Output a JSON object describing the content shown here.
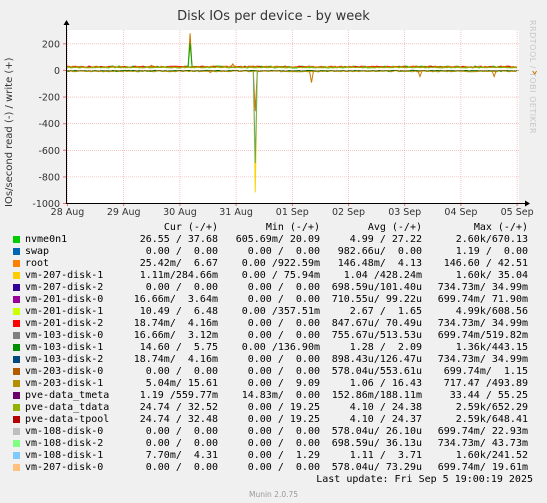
{
  "chart_data": {
    "type": "line",
    "title": "Disk IOs per device - by week",
    "ylabel": "IOs/second read (-) / write (+)",
    "ylim": [
      -1000,
      300
    ],
    "yticks": [
      -1000,
      -800,
      -600,
      -400,
      -200,
      0,
      200
    ],
    "xticks": [
      "28 Aug",
      "29 Aug",
      "30 Aug",
      "31 Aug",
      "01 Sep",
      "02 Sep",
      "03 Sep",
      "04 Sep",
      "05 Sep"
    ],
    "grid": true,
    "legend_placement": "bottom",
    "spikes": [
      {
        "day": 2.19,
        "value": 275,
        "color": "#cc7700"
      },
      {
        "day": 2.19,
        "value": 200,
        "color": "#00aa00"
      },
      {
        "day": 3.35,
        "value": -310,
        "color": "#cc7700"
      },
      {
        "day": 3.35,
        "value": -920,
        "color": "#ffd400"
      },
      {
        "day": 3.35,
        "value": -700,
        "color": "#66aa66"
      },
      {
        "day": 4.35,
        "value": -95,
        "color": "#cc7700"
      },
      {
        "day": 1.5,
        "value": 35,
        "color": "#cc7700"
      },
      {
        "day": 2.55,
        "value": -20,
        "color": "#cc7700"
      },
      {
        "day": 2.95,
        "value": 45,
        "color": "#cc7700"
      },
      {
        "day": 6.28,
        "value": -50,
        "color": "#cc7700"
      },
      {
        "day": 7.6,
        "value": -50,
        "color": "#cc7700"
      },
      {
        "day": 8.32,
        "value": -30,
        "color": "#cc7700"
      },
      {
        "day": 8.6,
        "value": -40,
        "color": "#cc7700"
      }
    ],
    "baseline_write": 22,
    "baseline_read": -8
  },
  "watermark": "RRDTOOL / TOBI OETIKER",
  "legend": {
    "headers": {
      "cur": "Cur (-/+)",
      "min": "Min (-/+)",
      "avg": "Avg (-/+)",
      "max": "Max (-/+)"
    },
    "rows": [
      {
        "name": "nvme0n1",
        "color": "#00cc00",
        "cur": "26.55 / 37.68",
        "min": "605.69m/ 20.09",
        "avg": "4.99 / 27.22",
        "max": "2.60k/670.13"
      },
      {
        "name": "swap",
        "color": "#0066b3",
        "cur": "0.00 /  0.00",
        "min": "0.00 /  0.00",
        "avg": "982.66u/  0.00",
        "max": "1.19 /  0.00"
      },
      {
        "name": "root",
        "color": "#ff8000",
        "cur": "25.42m/  6.67",
        "min": "0.00 /922.59m",
        "avg": "146.48m/  4.13",
        "max": "146.60 / 42.51"
      },
      {
        "name": "vm-207-disk-1",
        "color": "#ffcc00",
        "cur": "1.11m/284.66m",
        "min": "0.00 / 75.94m",
        "avg": "1.04 /428.24m",
        "max": "1.60k/ 35.04"
      },
      {
        "name": "vm-207-disk-2",
        "color": "#330099",
        "cur": "0.00 /  0.00",
        "min": "0.00 /  0.00",
        "avg": "698.59u/101.40u",
        "max": "734.73m/ 34.99m"
      },
      {
        "name": "vm-201-disk-0",
        "color": "#990099",
        "cur": "16.66m/  3.64m",
        "min": "0.00 /  0.00",
        "avg": "710.55u/ 99.22u",
        "max": "699.74m/ 71.90m"
      },
      {
        "name": "vm-201-disk-1",
        "color": "#ccff00",
        "cur": "10.49 /  6.48",
        "min": "0.00 /357.51m",
        "avg": "2.67 /  1.65",
        "max": "4.99k/608.56"
      },
      {
        "name": "vm-201-disk-2",
        "color": "#ff0000",
        "cur": "18.74m/  4.16m",
        "min": "0.00 /  0.00",
        "avg": "847.67u/ 70.49u",
        "max": "734.73m/ 34.99m"
      },
      {
        "name": "vm-103-disk-0",
        "color": "#808080",
        "cur": "16.66m/  3.12m",
        "min": "0.00 /  0.00",
        "avg": "755.67u/513.53u",
        "max": "699.74m/519.82m"
      },
      {
        "name": "vm-103-disk-1",
        "color": "#008f00",
        "cur": "14.60 /  5.75",
        "min": "0.00 /136.90m",
        "avg": "1.28 /  2.09",
        "max": "1.36k/443.15"
      },
      {
        "name": "vm-103-disk-2",
        "color": "#00487d",
        "cur": "18.74m/  4.16m",
        "min": "0.00 /  0.00",
        "avg": "898.43u/126.47u",
        "max": "734.73m/ 34.99m"
      },
      {
        "name": "vm-203-disk-0",
        "color": "#b35a00",
        "cur": "0.00 /  0.00",
        "min": "0.00 /  0.00",
        "avg": "578.04u/553.61u",
        "max": "699.74m/  1.15"
      },
      {
        "name": "vm-203-disk-1",
        "color": "#b38f00",
        "cur": "5.04m/ 15.61",
        "min": "0.00 /  9.09",
        "avg": "1.06 / 16.43",
        "max": "717.47 /493.89"
      },
      {
        "name": "pve-data_tmeta",
        "color": "#6b006b",
        "cur": "1.19 /559.77m",
        "min": "14.83m/  0.00",
        "avg": "152.86m/188.11m",
        "max": "33.44 / 55.25"
      },
      {
        "name": "pve-data_tdata",
        "color": "#8fb300",
        "cur": "24.74 / 32.52",
        "min": "0.00 / 19.25",
        "avg": "4.10 / 24.38",
        "max": "2.59k/652.29"
      },
      {
        "name": "pve-data-tpool",
        "color": "#b30000",
        "cur": "24.74 / 32.48",
        "min": "0.00 / 19.25",
        "avg": "4.10 / 24.37",
        "max": "2.59k/648.41"
      },
      {
        "name": "vm-108-disk-0",
        "color": "#bebebe",
        "cur": "0.00 /  0.00",
        "min": "0.00 /  0.00",
        "avg": "578.04u/ 26.10u",
        "max": "699.74m/ 22.93m"
      },
      {
        "name": "vm-108-disk-2",
        "color": "#80ff80",
        "cur": "0.00 /  0.00",
        "min": "0.00 /  0.00",
        "avg": "698.59u/ 36.13u",
        "max": "734.73m/ 43.73m"
      },
      {
        "name": "vm-108-disk-1",
        "color": "#80c9ff",
        "cur": "7.70m/  4.31",
        "min": "0.00 /  1.29",
        "avg": "1.11 /  3.71",
        "max": "1.60k/241.52"
      },
      {
        "name": "vm-207-disk-0",
        "color": "#ffc080",
        "cur": "0.00 /  0.00",
        "min": "0.00 /  0.00",
        "avg": "578.04u/ 73.29u",
        "max": "699.74m/ 19.61m"
      }
    ]
  },
  "last_update": "Last update:  Fri Sep  5 19:00:19 2025",
  "munin_version": "Munin 2.0.75"
}
